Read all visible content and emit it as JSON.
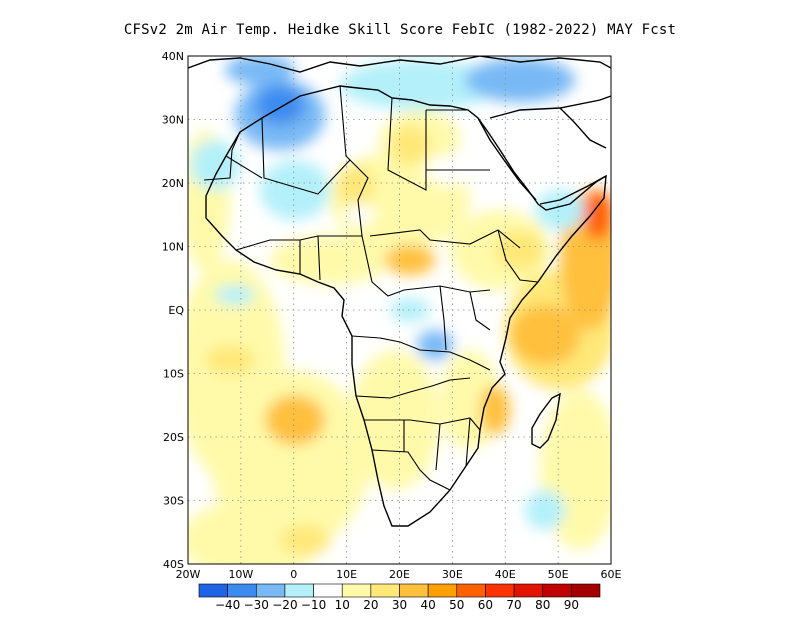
{
  "title": "CFSv2  2m Air Temp. Heidke Skill Score FebIC (1982-2022) MAY Fcst",
  "map": {
    "lon_labels": [
      "20W",
      "10W",
      "0",
      "10E",
      "20E",
      "30E",
      "40E",
      "50E",
      "60E"
    ],
    "lat_labels": [
      "40N",
      "30N",
      "20N",
      "10N",
      "EQ",
      "10S",
      "20S",
      "30S",
      "40S"
    ]
  },
  "colorbar": {
    "labels": [
      "-40",
      "-30",
      "-20",
      "-10",
      "10",
      "20",
      "30",
      "40",
      "50",
      "60",
      "70",
      "80",
      "90"
    ],
    "colors": [
      "#1f64e6",
      "#3c8cf0",
      "#78b9f5",
      "#b4f0fa",
      "#ffffff",
      "#fffaaa",
      "#ffe878",
      "#ffc03c",
      "#ffa000",
      "#ff6000",
      "#ff3200",
      "#e11400",
      "#c00000",
      "#a50000"
    ]
  }
}
